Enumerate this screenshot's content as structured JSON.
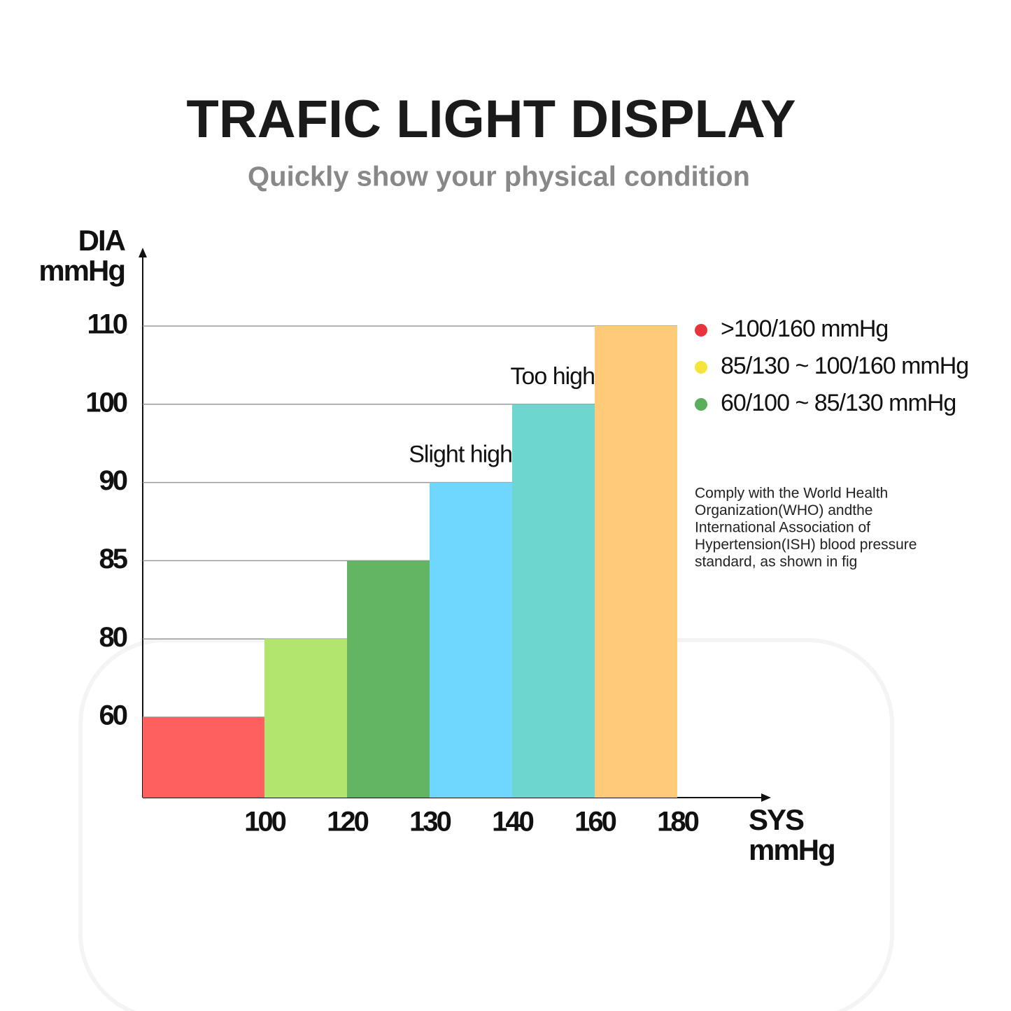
{
  "chart_data": {
    "type": "bar",
    "title": "TRAFIC LIGHT DISPLAY",
    "subtitle": "Quickly show your physical condition",
    "y_label": [
      "DIA",
      "mmHg"
    ],
    "x_label": [
      "SYS",
      "mmHg"
    ],
    "xticks": [
      100,
      120,
      130,
      140,
      160,
      180
    ],
    "yticks": [
      60,
      80,
      85,
      90,
      100,
      110
    ],
    "values": [
      60,
      80,
      85,
      90,
      100,
      110
    ],
    "colors": [
      "#fe5f5f",
      "#b2e56e",
      "#63b463",
      "#6fd6fd",
      "#6dd6cf",
      "#ffcb78"
    ],
    "grid": true,
    "annotations": [
      {
        "text": "Slight high",
        "bar": 3
      },
      {
        "text": "Too high",
        "bar": 4
      }
    ],
    "legend": [
      {
        "color": "#e8333a",
        "text": ">100/160 mmHg"
      },
      {
        "color": "#f5e43a",
        "text": "85/130 ~ 100/160 mmHg"
      },
      {
        "color": "#58b05a",
        "text": "60/100 ~  85/130 mmHg"
      }
    ],
    "note": [
      "Comply with the World Health",
      "Organization(WHO) andthe",
      "International Association of",
      "Hypertension(ISH) blood pressure",
      "standard, as shown in fig"
    ]
  }
}
